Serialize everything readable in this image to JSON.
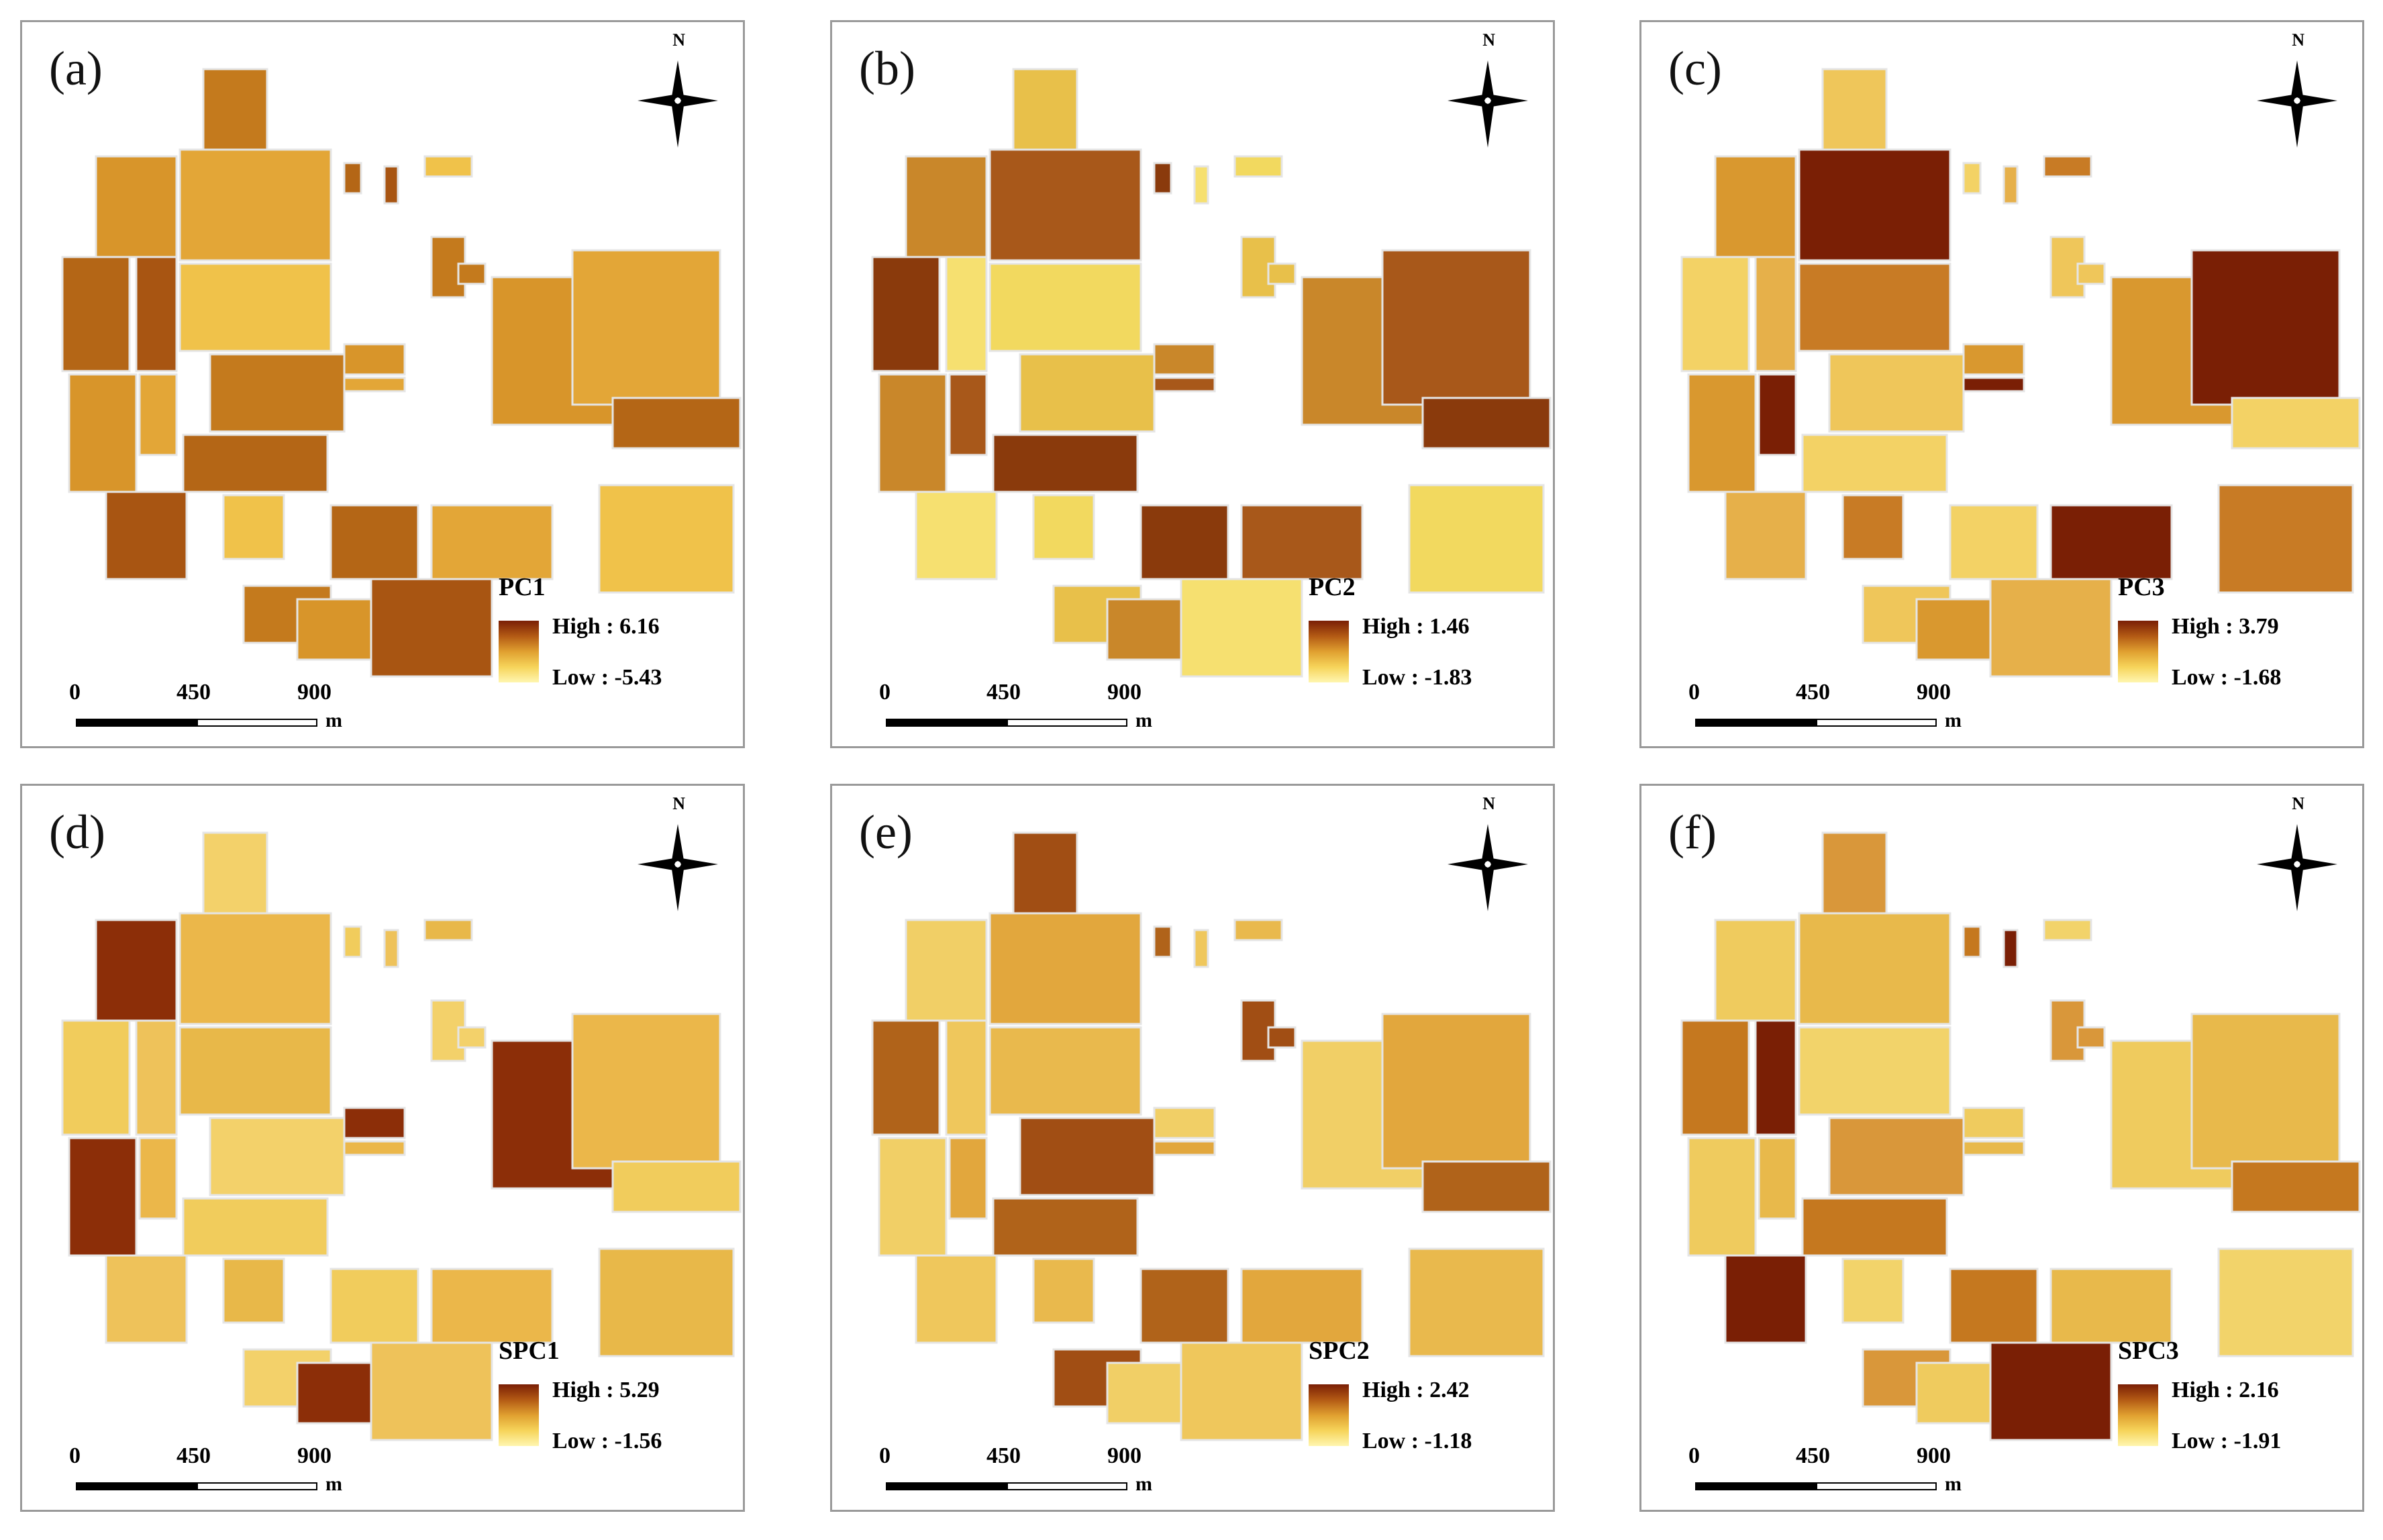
{
  "figure": {
    "panels": [
      {
        "label": "(a)",
        "title": "PC1",
        "high": "High : 6.16",
        "low": "Low : -5.43",
        "palette": "pc1"
      },
      {
        "label": "(b)",
        "title": "PC2",
        "high": "High : 1.46",
        "low": "Low : -1.83",
        "palette": "pc2"
      },
      {
        "label": "(c)",
        "title": "PC3",
        "high": "High : 3.79",
        "low": "Low : -1.68",
        "palette": "pc3"
      },
      {
        "label": "(d)",
        "title": "SPC1",
        "high": "High : 5.29",
        "low": "Low : -1.56",
        "palette": "spc1"
      },
      {
        "label": "(e)",
        "title": "SPC2",
        "high": "High : 2.42",
        "low": "Low : -1.18",
        "palette": "spc2"
      },
      {
        "label": "(f)",
        "title": "SPC3",
        "high": "High : 2.16",
        "low": "Low : -1.91",
        "palette": "spc3"
      }
    ],
    "north_label": "N",
    "scale": {
      "ticks": [
        "0",
        "450",
        "900"
      ],
      "unit": "m"
    },
    "colors": {
      "high": "#7a1f05",
      "mid": "#e0a030",
      "low": "#fff6b0",
      "frame": "#9a9a9a"
    }
  }
}
